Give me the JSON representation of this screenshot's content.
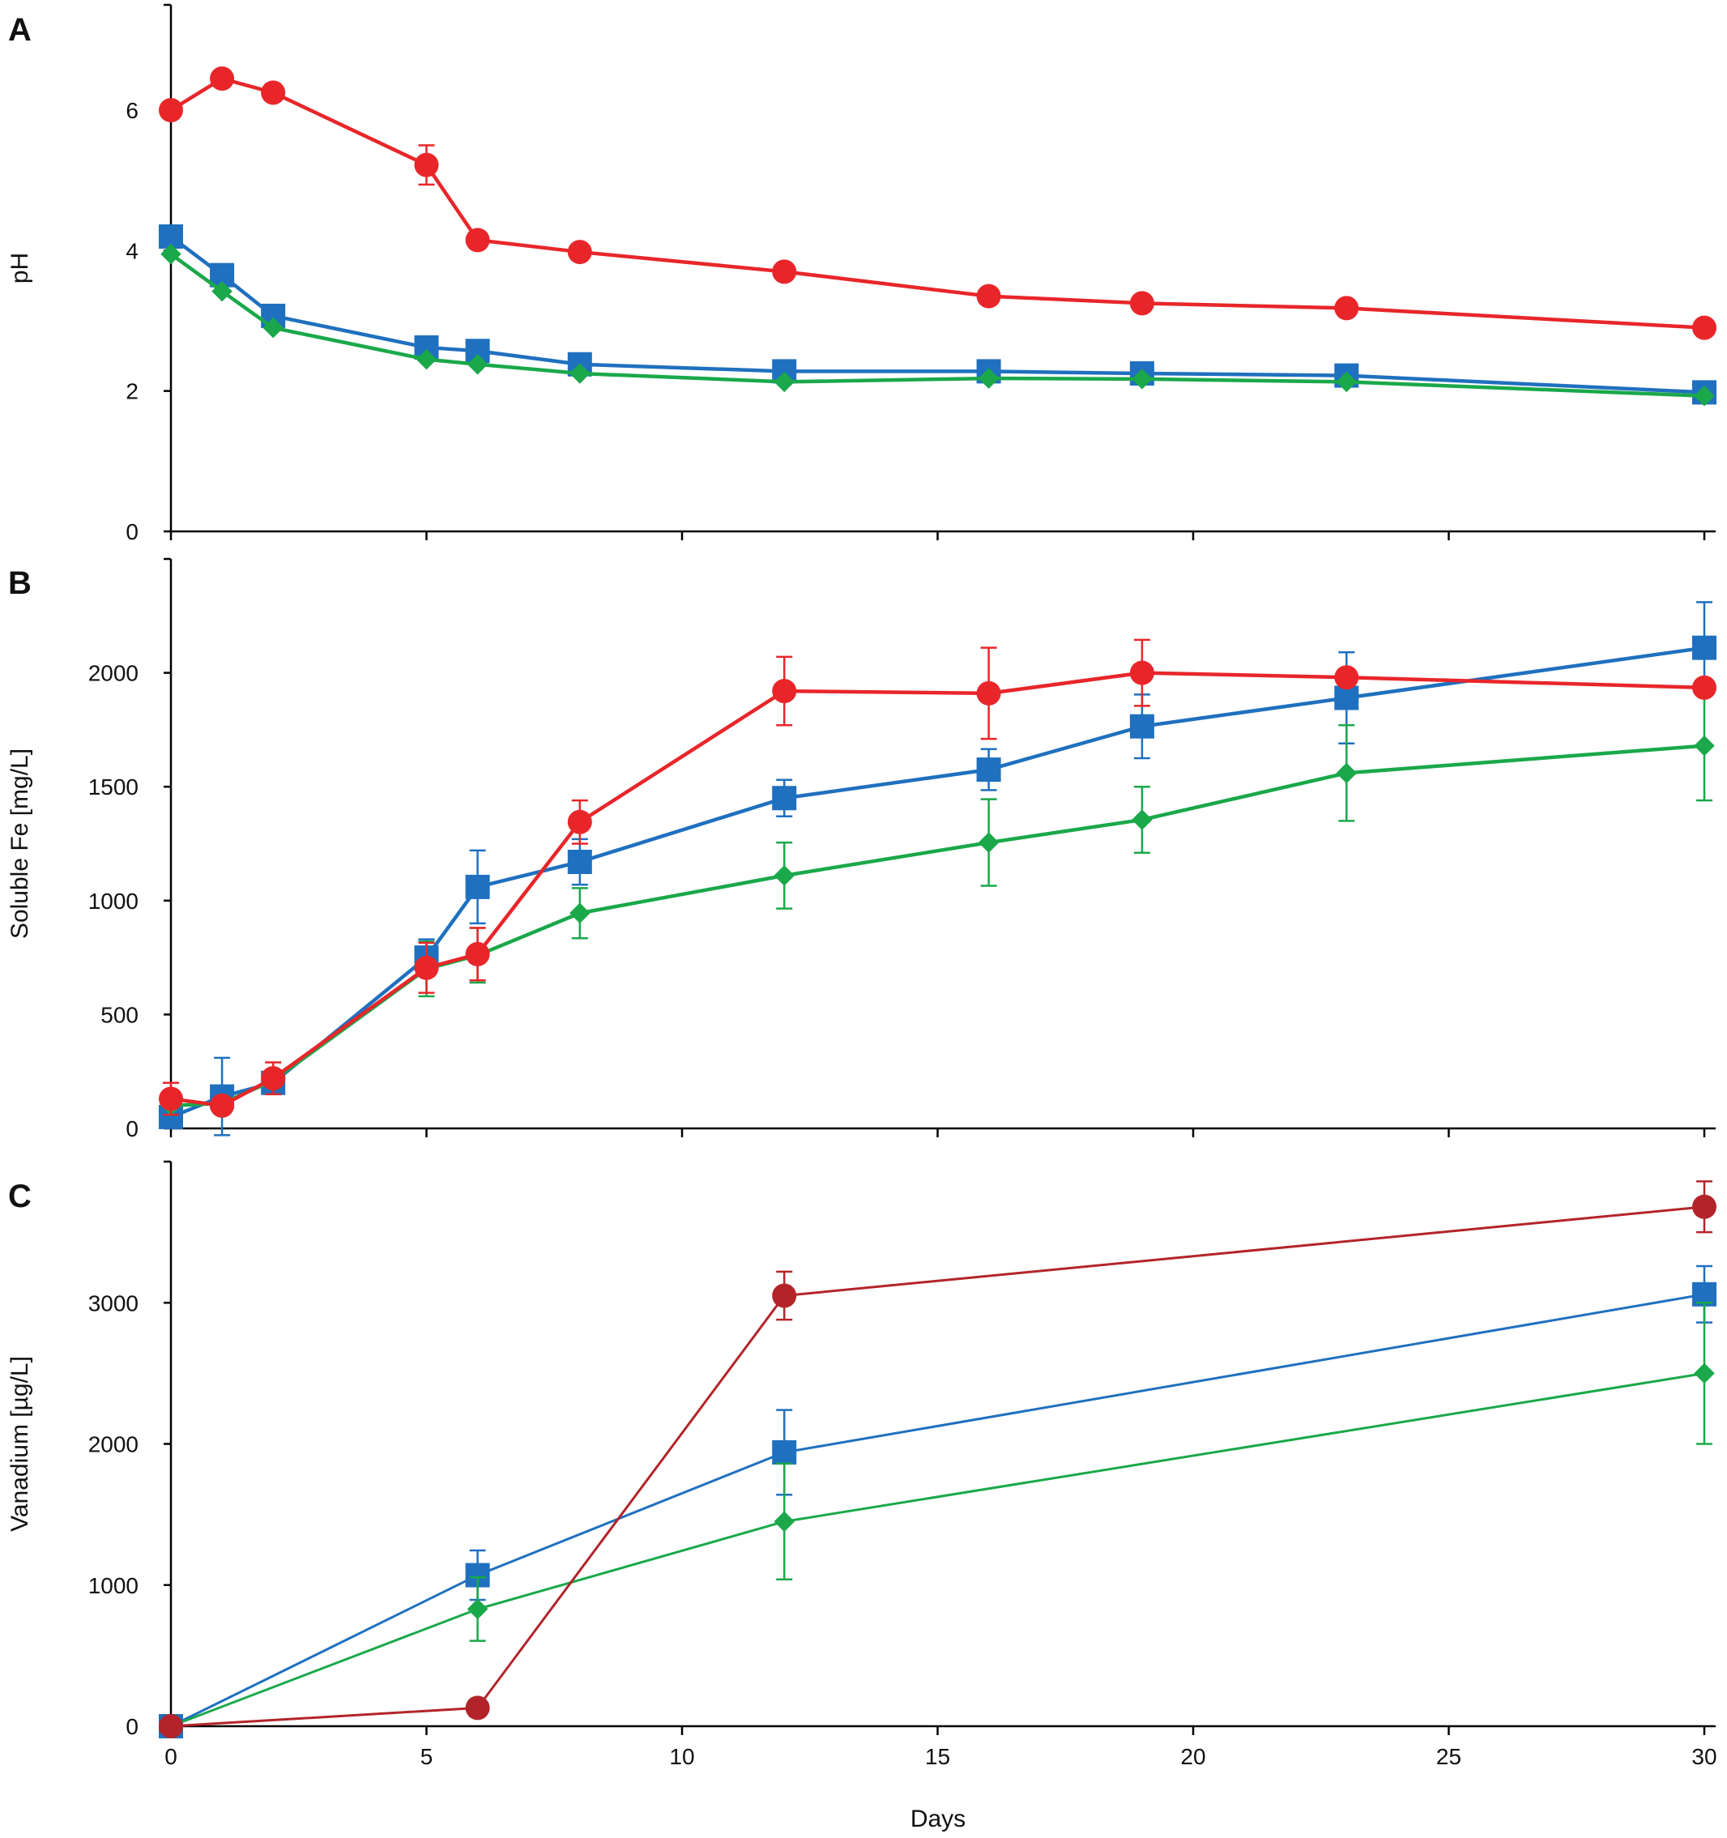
{
  "chart_data": {
    "type": "line",
    "shared_x": {
      "label": "Days",
      "range": [
        0,
        30
      ],
      "ticks": [
        0,
        5,
        10,
        15,
        20,
        25,
        30
      ]
    },
    "panels": [
      {
        "letter": "A",
        "ylabel": "pH",
        "ylim": [
          0,
          7.5
        ],
        "yticks": [
          0,
          2,
          4,
          6
        ],
        "series": [
          {
            "name": "red",
            "color": "#e8262a",
            "marker": "circle",
            "x": [
              0,
              1,
              2,
              5,
              6,
              8,
              12,
              16,
              19,
              23,
              30
            ],
            "y": [
              6.0,
              6.45,
              6.25,
              5.22,
              4.15,
              3.98,
              3.7,
              3.35,
              3.25,
              3.18,
              2.9
            ],
            "err": [
              0,
              0,
              0,
              0.28,
              0,
              0,
              0,
              0,
              0,
              0,
              0
            ]
          },
          {
            "name": "blue",
            "color": "#1f70bf",
            "marker": "square",
            "x": [
              0,
              1,
              2,
              5,
              6,
              8,
              12,
              16,
              19,
              23,
              30
            ],
            "y": [
              4.2,
              3.65,
              3.07,
              2.62,
              2.57,
              2.38,
              2.28,
              2.28,
              2.25,
              2.22,
              1.98
            ],
            "err": [
              0,
              0,
              0,
              0,
              0,
              0,
              0,
              0,
              0,
              0,
              0
            ]
          },
          {
            "name": "green",
            "color": "#1aa84a",
            "marker": "diamond",
            "x": [
              0,
              1,
              2,
              5,
              6,
              8,
              12,
              16,
              19,
              23,
              30
            ],
            "y": [
              3.95,
              3.42,
              2.9,
              2.45,
              2.38,
              2.25,
              2.13,
              2.18,
              2.17,
              2.13,
              1.93
            ],
            "err": [
              0,
              0,
              0,
              0,
              0,
              0,
              0,
              0,
              0,
              0,
              0
            ]
          }
        ]
      },
      {
        "letter": "B",
        "ylabel": "Soluble Fe [mg/L]",
        "ylim": [
          0,
          2500
        ],
        "yticks": [
          0,
          500,
          1000,
          1500,
          2000
        ],
        "series": [
          {
            "name": "blue",
            "color": "#1f70bf",
            "marker": "square",
            "x": [
              0,
              1,
              2,
              5,
              6,
              8,
              12,
              16,
              19,
              23,
              30
            ],
            "y": [
              50,
              140,
              200,
              750,
              1060,
              1170,
              1450,
              1575,
              1765,
              1890,
              2110
            ],
            "err": [
              0,
              170,
              0,
              80,
              160,
              100,
              80,
              90,
              140,
              200,
              200
            ]
          },
          {
            "name": "green",
            "color": "#1aa84a",
            "marker": "diamond",
            "x": [
              0,
              1,
              2,
              5,
              6,
              8,
              12,
              16,
              19,
              23,
              30
            ],
            "y": [
              100,
              110,
              210,
              700,
              760,
              945,
              1110,
              1255,
              1355,
              1560,
              1680
            ],
            "err": [
              0,
              0,
              0,
              120,
              120,
              110,
              145,
              190,
              145,
              210,
              240
            ]
          },
          {
            "name": "red",
            "color": "#e8262a",
            "marker": "circle",
            "x": [
              0,
              1,
              2,
              5,
              6,
              8,
              12,
              16,
              19,
              23,
              30
            ],
            "y": [
              130,
              100,
              220,
              705,
              765,
              1345,
              1920,
              1910,
              2000,
              1980,
              1935
            ],
            "err": [
              70,
              0,
              70,
              110,
              115,
              95,
              150,
              200,
              145,
              0,
              0
            ]
          }
        ]
      },
      {
        "letter": "C",
        "ylabel": "Vanadium [µg/L]",
        "ylim": [
          0,
          4000
        ],
        "yticks": [
          0,
          1000,
          2000,
          3000
        ],
        "series": [
          {
            "name": "blue",
            "color": "#1f70bf",
            "marker": "square",
            "x": [
              0,
              6,
              12,
              30
            ],
            "y": [
              0,
              1070,
              1940,
              3060
            ],
            "err": [
              0,
              175,
              300,
              200
            ]
          },
          {
            "name": "green",
            "color": "#1aa84a",
            "marker": "diamond",
            "x": [
              0,
              6,
              12,
              30
            ],
            "y": [
              0,
              830,
              1450,
              2500
            ],
            "err": [
              0,
              225,
              410,
              500
            ]
          },
          {
            "name": "darkred",
            "color": "#b3242a",
            "marker": "circle",
            "x": [
              0,
              6,
              12,
              30
            ],
            "y": [
              0,
              130,
              3050,
              3680
            ],
            "err": [
              0,
              60,
              170,
              180
            ]
          }
        ]
      }
    ]
  }
}
